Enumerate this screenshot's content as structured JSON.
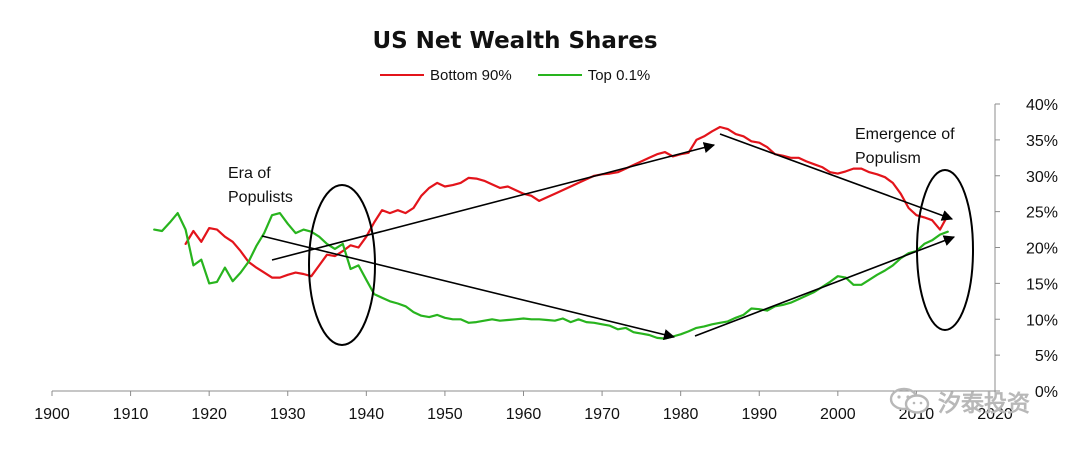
{
  "chart_data": {
    "type": "line",
    "title": "US Net Wealth Shares",
    "x_ticks": [
      "1900",
      "1910",
      "1920",
      "1930",
      "1940",
      "1950",
      "1960",
      "1970",
      "1980",
      "1990",
      "2000",
      "2010",
      "2020"
    ],
    "y_ticks": [
      "0%",
      "5%",
      "10%",
      "15%",
      "20%",
      "25%",
      "30%",
      "35%",
      "40%"
    ],
    "xlim": [
      1900,
      2020
    ],
    "ylim": [
      0,
      40
    ],
    "legend_position": "top",
    "grid": false,
    "series": [
      {
        "name": "Bottom 90%",
        "color": "#e3141b",
        "x": [
          1917,
          1918,
          1919,
          1920,
          1921,
          1922,
          1923,
          1924,
          1925,
          1926,
          1927,
          1928,
          1929,
          1930,
          1931,
          1932,
          1933,
          1934,
          1935,
          1936,
          1937,
          1938,
          1939,
          1940,
          1941,
          1942,
          1943,
          1944,
          1945,
          1946,
          1947,
          1948,
          1949,
          1950,
          1951,
          1952,
          1953,
          1954,
          1955,
          1956,
          1957,
          1958,
          1959,
          1960,
          1961,
          1962,
          1963,
          1964,
          1965,
          1966,
          1967,
          1968,
          1969,
          1970,
          1971,
          1972,
          1973,
          1974,
          1975,
          1976,
          1977,
          1978,
          1979,
          1980,
          1981,
          1982,
          1983,
          1984,
          1985,
          1986,
          1987,
          1988,
          1989,
          1990,
          1991,
          1992,
          1993,
          1994,
          1995,
          1996,
          1997,
          1998,
          1999,
          2000,
          2001,
          2002,
          2003,
          2004,
          2005,
          2006,
          2007,
          2008,
          2009,
          2010,
          2011,
          2012,
          2013,
          2014
        ],
        "y": [
          20.5,
          22.3,
          20.8,
          22.7,
          22.5,
          21.5,
          20.8,
          19.5,
          18,
          17.2,
          16.5,
          15.8,
          15.8,
          16.2,
          16.5,
          16.3,
          16,
          17.5,
          19,
          18.8,
          19.5,
          20.3,
          20,
          21.5,
          23.5,
          25.2,
          24.8,
          25.2,
          24.8,
          25.5,
          27.2,
          28.3,
          29,
          28.5,
          28.7,
          29,
          29.7,
          29.6,
          29.3,
          28.8,
          28.3,
          28.5,
          28,
          27.5,
          27.2,
          26.5,
          27,
          27.5,
          28,
          28.5,
          29,
          29.5,
          30,
          30.2,
          30.3,
          30.5,
          31,
          31.5,
          32,
          32.5,
          33,
          33.3,
          32.7,
          33,
          33.2,
          35,
          35.5,
          36.2,
          36.8,
          36.5,
          35.8,
          35.5,
          34.8,
          34.6,
          34,
          33,
          32.8,
          32.5,
          32.5,
          32,
          31.6,
          31.2,
          30.5,
          30.3,
          30.6,
          31,
          31,
          30.5,
          30.2,
          29.8,
          29,
          27.5,
          25.5,
          24.5,
          24.2,
          23.8,
          22.5,
          24.5
        ]
      },
      {
        "name": "Top 0.1%",
        "color": "#28b41e",
        "x": [
          1913,
          1914,
          1915,
          1916,
          1917,
          1918,
          1919,
          1920,
          1921,
          1922,
          1923,
          1924,
          1925,
          1926,
          1927,
          1928,
          1929,
          1930,
          1931,
          1932,
          1933,
          1934,
          1935,
          1936,
          1937,
          1938,
          1939,
          1940,
          1941,
          1942,
          1943,
          1944,
          1945,
          1946,
          1947,
          1948,
          1949,
          1950,
          1951,
          1952,
          1953,
          1954,
          1955,
          1956,
          1957,
          1958,
          1959,
          1960,
          1961,
          1962,
          1963,
          1964,
          1965,
          1966,
          1967,
          1968,
          1969,
          1970,
          1971,
          1972,
          1973,
          1974,
          1975,
          1976,
          1977,
          1978,
          1979,
          1980,
          1981,
          1982,
          1983,
          1984,
          1985,
          1986,
          1987,
          1988,
          1989,
          1990,
          1991,
          1992,
          1993,
          1994,
          1995,
          1996,
          1997,
          1998,
          1999,
          2000,
          2001,
          2002,
          2003,
          2004,
          2005,
          2006,
          2007,
          2008,
          2009,
          2010,
          2011,
          2012,
          2013,
          2014
        ],
        "y": [
          22.5,
          22.3,
          23.5,
          24.8,
          22.5,
          17.5,
          18.3,
          15,
          15.2,
          17.2,
          15.3,
          16.5,
          18,
          20.2,
          22,
          24.5,
          24.8,
          23.3,
          22,
          22.5,
          22.2,
          21.5,
          20.5,
          19.8,
          20.5,
          17,
          17.5,
          15.5,
          13.5,
          13,
          12.5,
          12.2,
          11.8,
          11,
          10.5,
          10.3,
          10.6,
          10.2,
          10,
          10,
          9.5,
          9.6,
          9.8,
          10,
          9.8,
          9.9,
          10,
          10.1,
          10,
          10,
          9.9,
          9.8,
          10.1,
          9.6,
          10,
          9.6,
          9.5,
          9.3,
          9.1,
          8.6,
          8.8,
          8.2,
          8,
          7.8,
          7.4,
          7.3,
          7.6,
          7.9,
          8.3,
          8.8,
          9,
          9.3,
          9.5,
          9.7,
          10.2,
          10.6,
          11.5,
          11.4,
          11.2,
          11.8,
          12,
          12.3,
          12.8,
          13.3,
          13.8,
          14.5,
          15.2,
          16,
          15.8,
          14.8,
          14.8,
          15.5,
          16.2,
          16.8,
          17.5,
          18.5,
          19.2,
          19.5,
          20.5,
          21,
          21.8,
          22.2
        ]
      }
    ],
    "annotations": [
      {
        "text_lines": [
          "Era of",
          "Populists"
        ]
      },
      {
        "text_lines": [
          "Emergence of",
          "Populism"
        ]
      }
    ]
  },
  "watermark": {
    "text": "汐泰投资",
    "icon": "wechat-icon"
  }
}
